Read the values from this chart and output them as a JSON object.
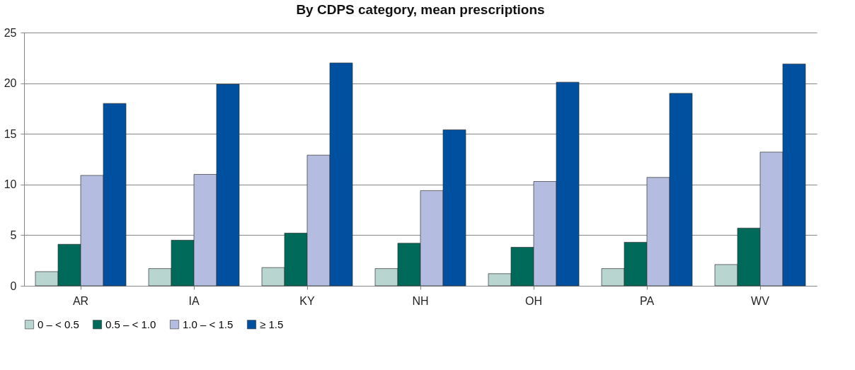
{
  "chart_data": {
    "type": "bar",
    "title": "By CDPS category, mean prescriptions",
    "categories": [
      "AR",
      "IA",
      "KY",
      "NH",
      "OH",
      "PA",
      "WV"
    ],
    "series": [
      {
        "name": "0 – < 0.5",
        "color": "#b9d5d0",
        "values": [
          1.4,
          1.7,
          1.8,
          1.7,
          1.2,
          1.7,
          2.1
        ]
      },
      {
        "name": "0.5 – < 1.0",
        "color": "#006a5a",
        "values": [
          4.1,
          4.5,
          5.2,
          4.2,
          3.8,
          4.3,
          5.7
        ]
      },
      {
        "name": "1.0 – < 1.5",
        "color": "#b4bde0",
        "values": [
          10.9,
          11.0,
          12.9,
          9.4,
          10.3,
          10.7,
          13.2
        ]
      },
      {
        "name": "≥ 1.5",
        "color": "#0050a0",
        "values": [
          18.0,
          19.9,
          22.0,
          15.4,
          20.1,
          19.0,
          21.9
        ]
      }
    ],
    "ylim": [
      0,
      25
    ],
    "yticks": [
      0,
      5,
      10,
      15,
      20,
      25
    ],
    "grid": "y",
    "legend": "bottom"
  }
}
